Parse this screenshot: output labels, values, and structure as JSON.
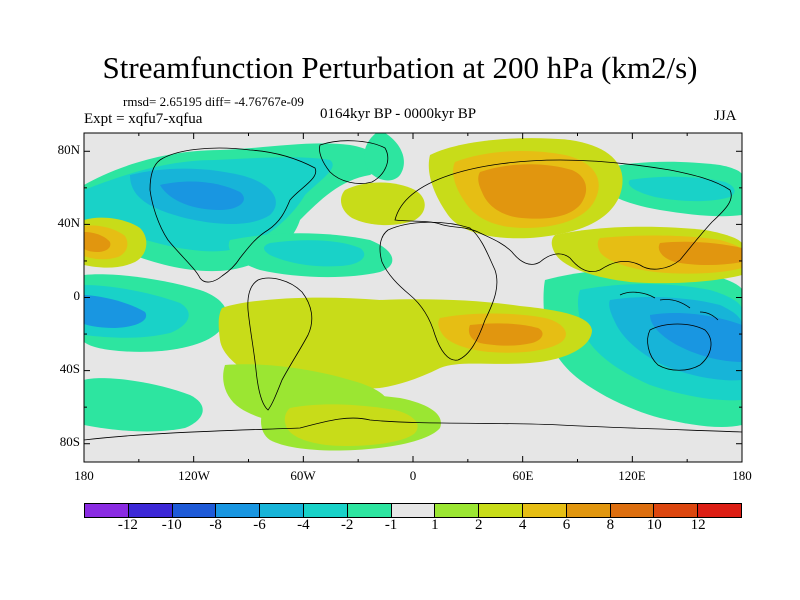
{
  "title": "Streamfunction Perturbation at 200 hPa (km2/s)",
  "stats": "rmsd= 2.65195 diff= -4.76767e-09",
  "experiment": "Expt = xqfu7-xqfua",
  "period": "0164kyr BP - 0000kyr BP",
  "season": "JJA",
  "lat_ticks": [
    "80N",
    "40N",
    "0",
    "40S",
    "80S"
  ],
  "lon_ticks": [
    "180",
    "120W",
    "60W",
    "0",
    "60E",
    "120E",
    "180"
  ],
  "colorbar": {
    "colors": [
      "#8a2be2",
      "#3c28d7",
      "#1e5ad7",
      "#1996e1",
      "#17b4d8",
      "#19d2c8",
      "#2de5a0",
      "#e6e6e6",
      "#9be632",
      "#c8dc19",
      "#e6be14",
      "#e1960f",
      "#dc6e0f",
      "#dc460f",
      "#dc1e14"
    ],
    "labels": [
      "-12",
      "-10",
      "-8",
      "-6",
      "-4",
      "-2",
      "-1",
      "1",
      "2",
      "4",
      "6",
      "8",
      "10",
      "12"
    ]
  }
}
